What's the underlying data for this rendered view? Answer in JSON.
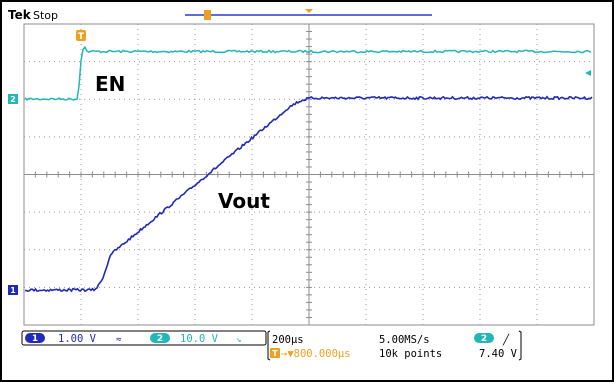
{
  "header": {
    "brand": "Tek",
    "state": "Stop"
  },
  "labels": {
    "en": "EN",
    "vout": "Vout"
  },
  "markers": {
    "trigger_marker": "T",
    "ch2_marker": "2",
    "ch1_marker": "1"
  },
  "channels": [
    {
      "number": "1",
      "scale": "1.00 V",
      "coupling_symbol": "≈",
      "color": "#1f2bb8"
    },
    {
      "number": "2",
      "scale": "10.0 V",
      "coupling_symbol": "↘",
      "color": "#22b6b6"
    }
  ],
  "horizontal": {
    "timebase": "200µs",
    "trigger_delay": "→▼800.000µs"
  },
  "acquisition": {
    "sample_rate": "5.00MS/s",
    "record_length": "10k points"
  },
  "trigger": {
    "source": "2",
    "slope_symbol": "╱",
    "level": "7.40 V"
  },
  "colors": {
    "ch1": "#1f2bb8",
    "ch2": "#22b6b6",
    "trigger": "#f0a020",
    "grid": "#b8b8b8",
    "record_bar": "#2a3ad0"
  }
}
